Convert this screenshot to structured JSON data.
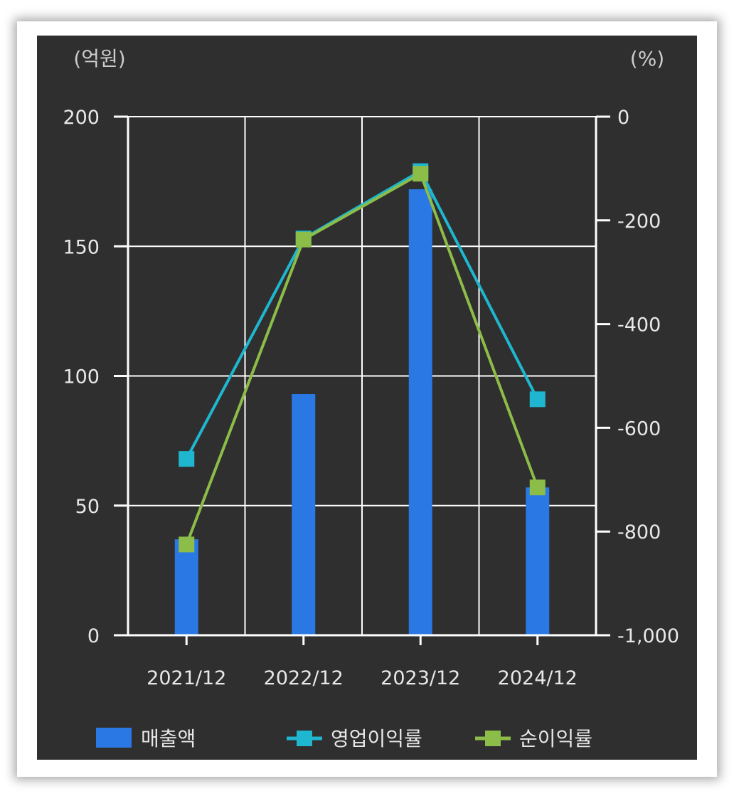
{
  "colors": {
    "background": "#2f2f2f",
    "grid": "#ffffff",
    "text": "#e8e8e8",
    "revenue": "#2a78e4",
    "operating_margin": "#1eb7cf",
    "net_margin": "#8cbd48"
  },
  "chart_data": {
    "type": "bar",
    "categories": [
      "2021/12",
      "2022/12",
      "2023/12",
      "2024/12"
    ],
    "left_unit": "(억원)",
    "right_unit": "(%)",
    "left_axis": {
      "ylim": [
        0,
        200
      ],
      "ticks": [
        0,
        50,
        100,
        150,
        200
      ],
      "tick_labels": [
        "0",
        "50",
        "100",
        "150",
        "200"
      ]
    },
    "right_axis": {
      "ylim": [
        -1000,
        0
      ],
      "ticks": [
        -1000,
        -800,
        -600,
        -400,
        -200,
        0
      ],
      "tick_labels": [
        "-1,000",
        "-800",
        "-600",
        "-400",
        "-200",
        "0"
      ]
    },
    "grid": true,
    "legend_position": "bottom",
    "series": [
      {
        "name": "매출액",
        "type": "bar",
        "axis": "left",
        "values": [
          37,
          93,
          172,
          57
        ]
      },
      {
        "name": "영업이익률",
        "type": "line",
        "axis": "right",
        "values": [
          -660,
          -235,
          -105,
          -545
        ]
      },
      {
        "name": "순이익률",
        "type": "line",
        "axis": "right",
        "values": [
          -825,
          -237,
          -110,
          -715
        ]
      }
    ]
  }
}
